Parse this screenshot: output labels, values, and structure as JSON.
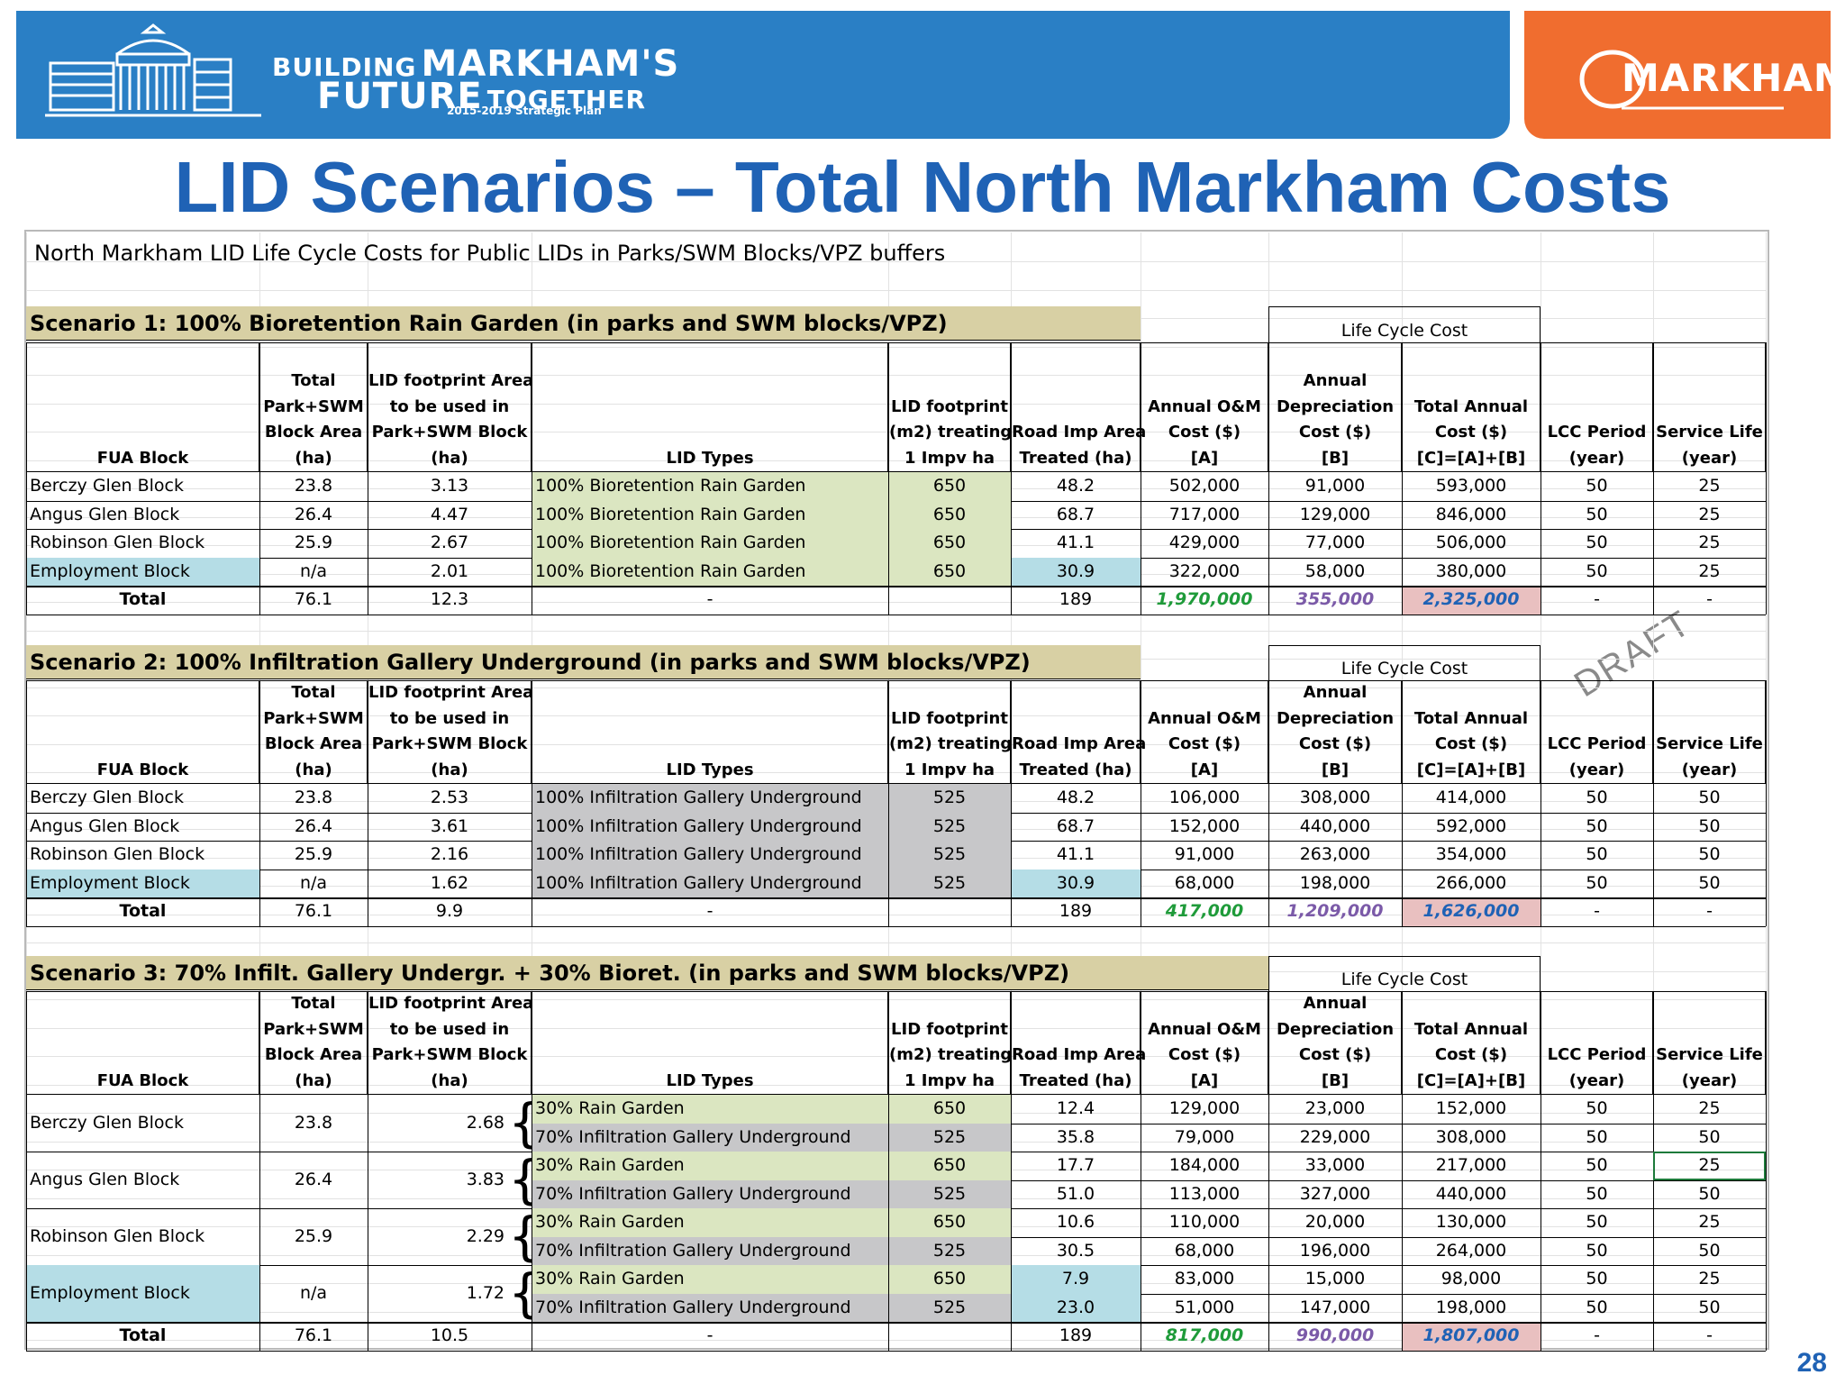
{
  "header": {
    "brand_line1_small": "BUILDING",
    "brand_line1_large": "MARKHAM'S",
    "brand_line2_large": "FUTURE",
    "brand_line2_small": "TOGETHER",
    "plan_subtitle": "2015-2019 Strategic Plan",
    "city_logo_text": "MARKHAM",
    "colors": {
      "blue": "#2a7fc5",
      "orange": "#f06d2f",
      "title": "#1f62b5"
    }
  },
  "page_title": "LID Scenarios – Total North Markham Costs",
  "sheet_title": "North Markham LID Life Cycle Costs for Public LIDs in Parks/SWM Blocks/VPZ buffers",
  "life_cycle_cost_label": "Life Cycle Cost",
  "columns": {
    "fua_block": [
      "FUA Block"
    ],
    "total_area": [
      "Total",
      "Park+SWM",
      "Block Area",
      "(ha)"
    ],
    "footprint_area": [
      "LID footprint Area",
      "to be used in",
      "Park+SWM Block",
      "(ha)"
    ],
    "lid_types": [
      "LID Types"
    ],
    "footprint_m2": [
      "LID footprint",
      "(m2) treating",
      "1 Impv ha"
    ],
    "road_imp": [
      "Road Imp Area",
      "Treated (ha)"
    ],
    "om_cost": [
      "Annual O&M",
      "Cost ($)",
      "[A]"
    ],
    "depreciation": [
      "Annual",
      "Depreciation",
      "Cost ($)",
      "[B]"
    ],
    "total_annual": [
      "Total Annual",
      "Cost ($)",
      "[C]=[A]+[B]"
    ],
    "lcc_period": [
      "LCC Period",
      "(year)"
    ],
    "service_life": [
      "Service Life",
      "(year)"
    ]
  },
  "scenarios": [
    {
      "title": "Scenario 1: 100% Bioretention Rain Garden (in parks and SWM blocks/VPZ)",
      "rows": [
        {
          "block": "Berczy Glen Block",
          "area": "23.8",
          "footprint": "3.13",
          "type": "100% Bioretention Rain Garden",
          "m2": "650",
          "road": "48.2",
          "om": "502,000",
          "dep": "91,000",
          "total": "593,000",
          "lcc": "50",
          "life": "25"
        },
        {
          "block": "Angus Glen Block",
          "area": "26.4",
          "footprint": "4.47",
          "type": "100% Bioretention Rain Garden",
          "m2": "650",
          "road": "68.7",
          "om": "717,000",
          "dep": "129,000",
          "total": "846,000",
          "lcc": "50",
          "life": "25"
        },
        {
          "block": "Robinson Glen Block",
          "area": "25.9",
          "footprint": "2.67",
          "type": "100% Bioretention Rain Garden",
          "m2": "650",
          "road": "41.1",
          "om": "429,000",
          "dep": "77,000",
          "total": "506,000",
          "lcc": "50",
          "life": "25"
        },
        {
          "block": "Employment Block",
          "area": "n/a",
          "footprint": "2.01",
          "type": "100% Bioretention Rain Garden",
          "m2": "650",
          "road": "30.9",
          "om": "322,000",
          "dep": "58,000",
          "total": "380,000",
          "lcc": "50",
          "life": "25"
        }
      ],
      "total": {
        "label": "Total",
        "area": "76.1",
        "footprint": "12.3",
        "type": "-",
        "road": "189",
        "om": "1,970,000",
        "dep": "355,000",
        "total": "2,325,000",
        "lcc": "-",
        "life": "-"
      }
    },
    {
      "title": "Scenario 2: 100% Infiltration Gallery Underground (in parks and SWM blocks/VPZ)",
      "rows": [
        {
          "block": "Berczy Glen Block",
          "area": "23.8",
          "footprint": "2.53",
          "type": "100% Infiltration Gallery Underground",
          "m2": "525",
          "road": "48.2",
          "om": "106,000",
          "dep": "308,000",
          "total": "414,000",
          "lcc": "50",
          "life": "50"
        },
        {
          "block": "Angus Glen Block",
          "area": "26.4",
          "footprint": "3.61",
          "type": "100% Infiltration Gallery Underground",
          "m2": "525",
          "road": "68.7",
          "om": "152,000",
          "dep": "440,000",
          "total": "592,000",
          "lcc": "50",
          "life": "50"
        },
        {
          "block": "Robinson Glen Block",
          "area": "25.9",
          "footprint": "2.16",
          "type": "100% Infiltration Gallery Underground",
          "m2": "525",
          "road": "41.1",
          "om": "91,000",
          "dep": "263,000",
          "total": "354,000",
          "lcc": "50",
          "life": "50"
        },
        {
          "block": "Employment Block",
          "area": "n/a",
          "footprint": "1.62",
          "type": "100% Infiltration Gallery Underground",
          "m2": "525",
          "road": "30.9",
          "om": "68,000",
          "dep": "198,000",
          "total": "266,000",
          "lcc": "50",
          "life": "50"
        }
      ],
      "total": {
        "label": "Total",
        "area": "76.1",
        "footprint": "9.9",
        "type": "-",
        "road": "189",
        "om": "417,000",
        "dep": "1,209,000",
        "total": "1,626,000",
        "lcc": "-",
        "life": "-"
      }
    },
    {
      "title": "Scenario 3: 70% Infilt. Gallery Undergr. + 30% Bioret. (in parks and SWM blocks/VPZ)",
      "groups": [
        {
          "block": "Berczy Glen Block",
          "area": "23.8",
          "footprint": "2.68",
          "rows": [
            {
              "type": "30% Rain Garden",
              "m2": "650",
              "road": "12.4",
              "om": "129,000",
              "dep": "23,000",
              "total": "152,000",
              "lcc": "50",
              "life": "25"
            },
            {
              "type": "70% Infiltration Gallery Underground",
              "m2": "525",
              "road": "35.8",
              "om": "79,000",
              "dep": "229,000",
              "total": "308,000",
              "lcc": "50",
              "life": "50"
            }
          ]
        },
        {
          "block": "Angus Glen Block",
          "area": "26.4",
          "footprint": "3.83",
          "rows": [
            {
              "type": "30% Rain Garden",
              "m2": "650",
              "road": "17.7",
              "om": "184,000",
              "dep": "33,000",
              "total": "217,000",
              "lcc": "50",
              "life": "25"
            },
            {
              "type": "70% Infiltration Gallery Underground",
              "m2": "525",
              "road": "51.0",
              "om": "113,000",
              "dep": "327,000",
              "total": "440,000",
              "lcc": "50",
              "life": "50"
            }
          ]
        },
        {
          "block": "Robinson Glen Block",
          "area": "25.9",
          "footprint": "2.29",
          "rows": [
            {
              "type": "30% Rain Garden",
              "m2": "650",
              "road": "10.6",
              "om": "110,000",
              "dep": "20,000",
              "total": "130,000",
              "lcc": "50",
              "life": "25"
            },
            {
              "type": "70% Infiltration Gallery Underground",
              "m2": "525",
              "road": "30.5",
              "om": "68,000",
              "dep": "196,000",
              "total": "264,000",
              "lcc": "50",
              "life": "50"
            }
          ]
        },
        {
          "block": "Employment Block",
          "area": "n/a",
          "footprint": "1.72",
          "rows": [
            {
              "type": "30% Rain Garden",
              "m2": "650",
              "road": "7.9",
              "om": "83,000",
              "dep": "15,000",
              "total": "98,000",
              "lcc": "50",
              "life": "25"
            },
            {
              "type": "70% Infiltration Gallery Underground",
              "m2": "525",
              "road": "23.0",
              "om": "51,000",
              "dep": "147,000",
              "total": "198,000",
              "lcc": "50",
              "life": "50"
            }
          ]
        }
      ],
      "total": {
        "label": "Total",
        "area": "76.1",
        "footprint": "10.5",
        "type": "-",
        "road": "189",
        "om": "817,000",
        "dep": "990,000",
        "total": "1,807,000",
        "lcc": "-",
        "life": "-"
      }
    }
  ],
  "watermark": "DRAFT",
  "page_number": "28"
}
